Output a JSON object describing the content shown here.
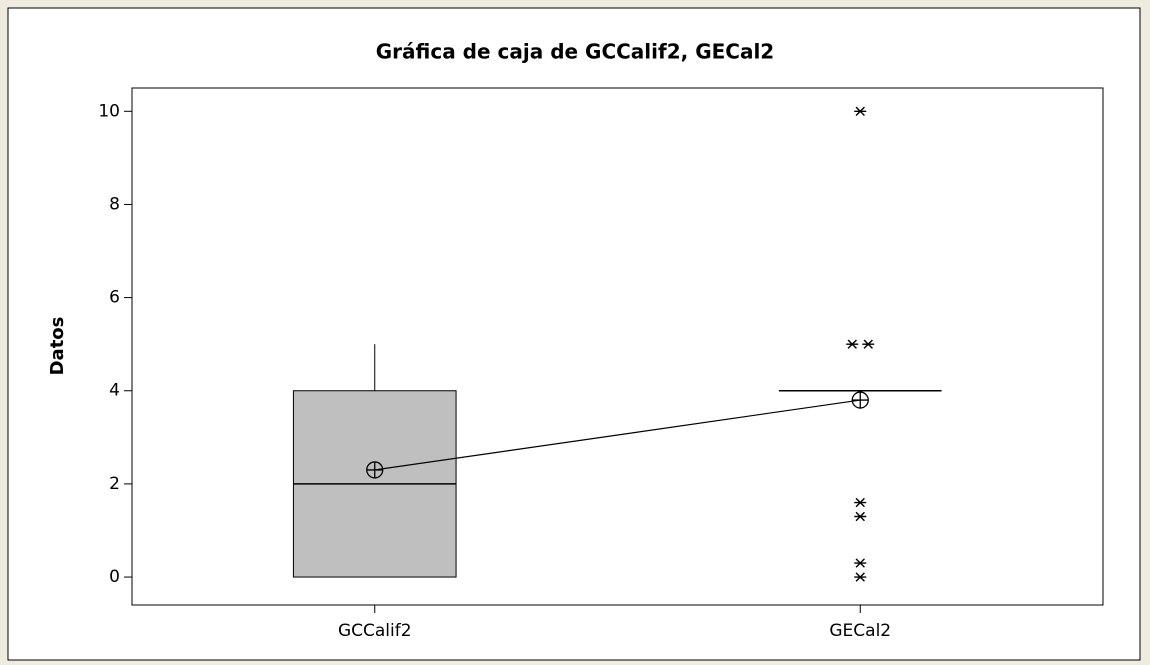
{
  "chart_data": {
    "type": "box",
    "title": "Gráfica de caja de GCCalif2, GECal2",
    "y_label": "Datos",
    "categories": [
      "GCCalif2",
      "GECal2"
    ],
    "boxes": [
      {
        "whisker_low": 0,
        "q1": 0,
        "median": 2,
        "q3": 4,
        "whisker_high": 5,
        "mean": 2.3,
        "outliers": []
      },
      {
        "whisker_low": 4,
        "q1": 4,
        "median": 4,
        "q3": 4,
        "whisker_high": 4,
        "mean": 3.8,
        "outliers": [
          10,
          5,
          5,
          1.6,
          1.3,
          0.3,
          0
        ]
      }
    ],
    "color": "#bfbfbf",
    "connect_means": true,
    "ylim": [
      -0.6,
      10.5
    ],
    "yticks": [
      0,
      2,
      4,
      6,
      8,
      10
    ],
    "grid": false
  }
}
